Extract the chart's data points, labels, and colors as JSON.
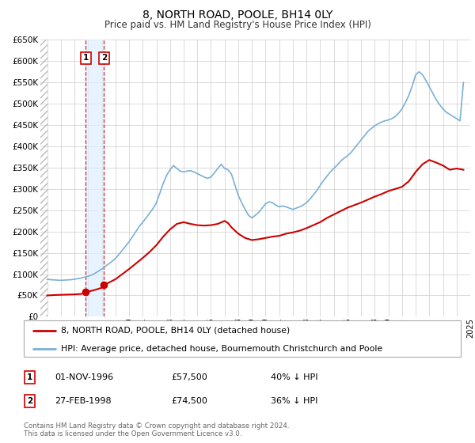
{
  "title": "8, NORTH ROAD, POOLE, BH14 0LY",
  "subtitle": "Price paid vs. HM Land Registry's House Price Index (HPI)",
  "legend_line1": "8, NORTH ROAD, POOLE, BH14 0LY (detached house)",
  "legend_line2": "HPI: Average price, detached house, Bournemouth Christchurch and Poole",
  "footer1": "Contains HM Land Registry data © Crown copyright and database right 2024.",
  "footer2": "This data is licensed under the Open Government Licence v3.0.",
  "sale1_date": "01-NOV-1996",
  "sale1_price": "£57,500",
  "sale1_pct": "40% ↓ HPI",
  "sale2_date": "27-FEB-1998",
  "sale2_price": "£74,500",
  "sale2_pct": "36% ↓ HPI",
  "red_color": "#cc0000",
  "blue_color": "#7ab0d4",
  "shade_color": "#ddeeff",
  "ylim_min": 0,
  "ylim_max": 650000,
  "yticks": [
    0,
    50000,
    100000,
    150000,
    200000,
    250000,
    300000,
    350000,
    400000,
    450000,
    500000,
    550000,
    600000,
    650000
  ],
  "ytick_labels": [
    "£0",
    "£50K",
    "£100K",
    "£150K",
    "£200K",
    "£250K",
    "£300K",
    "£350K",
    "£400K",
    "£450K",
    "£500K",
    "£550K",
    "£600K",
    "£650K"
  ],
  "hpi_years": [
    1994.0,
    1994.25,
    1994.5,
    1994.75,
    1995.0,
    1995.25,
    1995.5,
    1995.75,
    1996.0,
    1996.25,
    1996.5,
    1996.75,
    1997.0,
    1997.25,
    1997.5,
    1997.75,
    1998.0,
    1998.25,
    1998.5,
    1998.75,
    1999.0,
    1999.25,
    1999.5,
    1999.75,
    2000.0,
    2000.25,
    2000.5,
    2000.75,
    2001.0,
    2001.25,
    2001.5,
    2001.75,
    2002.0,
    2002.25,
    2002.5,
    2002.75,
    2003.0,
    2003.25,
    2003.5,
    2003.75,
    2004.0,
    2004.25,
    2004.5,
    2004.75,
    2005.0,
    2005.25,
    2005.5,
    2005.75,
    2006.0,
    2006.25,
    2006.5,
    2006.75,
    2007.0,
    2007.25,
    2007.5,
    2007.75,
    2008.0,
    2008.25,
    2008.5,
    2008.75,
    2009.0,
    2009.25,
    2009.5,
    2009.75,
    2010.0,
    2010.25,
    2010.5,
    2010.75,
    2011.0,
    2011.25,
    2011.5,
    2011.75,
    2012.0,
    2012.25,
    2012.5,
    2012.75,
    2013.0,
    2013.25,
    2013.5,
    2013.75,
    2014.0,
    2014.25,
    2014.5,
    2014.75,
    2015.0,
    2015.25,
    2015.5,
    2015.75,
    2016.0,
    2016.25,
    2016.5,
    2016.75,
    2017.0,
    2017.25,
    2017.5,
    2017.75,
    2018.0,
    2018.25,
    2018.5,
    2018.75,
    2019.0,
    2019.25,
    2019.5,
    2019.75,
    2020.0,
    2020.25,
    2020.5,
    2020.75,
    2021.0,
    2021.25,
    2021.5,
    2021.75,
    2022.0,
    2022.25,
    2022.5,
    2022.75,
    2023.0,
    2023.25,
    2023.5,
    2023.75,
    2024.0,
    2024.25,
    2024.5
  ],
  "hpi_values": [
    88000,
    87000,
    86500,
    86000,
    85500,
    86000,
    86500,
    87000,
    88000,
    89500,
    91000,
    93000,
    95000,
    98000,
    102000,
    107000,
    112000,
    118000,
    124000,
    130000,
    137000,
    146000,
    156000,
    166000,
    176000,
    188000,
    200000,
    212000,
    222000,
    232000,
    243000,
    254000,
    267000,
    290000,
    313000,
    332000,
    345000,
    355000,
    348000,
    342000,
    340000,
    342000,
    343000,
    340000,
    336000,
    332000,
    328000,
    325000,
    328000,
    338000,
    348000,
    358000,
    348000,
    345000,
    335000,
    310000,
    285000,
    268000,
    252000,
    238000,
    232000,
    238000,
    245000,
    255000,
    265000,
    270000,
    268000,
    262000,
    258000,
    260000,
    258000,
    255000,
    252000,
    255000,
    258000,
    262000,
    268000,
    276000,
    286000,
    296000,
    308000,
    320000,
    330000,
    340000,
    348000,
    356000,
    365000,
    372000,
    378000,
    385000,
    395000,
    405000,
    415000,
    425000,
    435000,
    442000,
    448000,
    453000,
    457000,
    460000,
    462000,
    465000,
    470000,
    478000,
    488000,
    503000,
    520000,
    542000,
    568000,
    575000,
    568000,
    555000,
    540000,
    525000,
    510000,
    498000,
    488000,
    480000,
    475000,
    470000,
    465000,
    460000,
    550000
  ],
  "red_years": [
    1994.0,
    1994.5,
    1995.0,
    1995.5,
    1996.0,
    1996.5,
    1996.833,
    1997.0,
    1997.5,
    1998.0,
    1998.167,
    1998.5,
    1999.0,
    1999.5,
    2000.0,
    2000.5,
    2001.0,
    2001.5,
    2002.0,
    2002.5,
    2003.0,
    2003.5,
    2004.0,
    2004.5,
    2005.0,
    2005.5,
    2006.0,
    2006.5,
    2007.0,
    2007.25,
    2007.5,
    2008.0,
    2008.5,
    2009.0,
    2009.5,
    2010.0,
    2010.5,
    2011.0,
    2011.5,
    2012.0,
    2012.5,
    2013.0,
    2013.5,
    2014.0,
    2014.5,
    2015.0,
    2015.5,
    2016.0,
    2016.5,
    2017.0,
    2017.5,
    2018.0,
    2018.5,
    2019.0,
    2019.5,
    2020.0,
    2020.5,
    2021.0,
    2021.5,
    2022.0,
    2022.5,
    2023.0,
    2023.5,
    2024.0,
    2024.5
  ],
  "red_values": [
    50000,
    51000,
    51500,
    52000,
    52500,
    53500,
    57500,
    59000,
    63000,
    68000,
    74500,
    80000,
    88000,
    100000,
    112000,
    125000,
    138000,
    152000,
    168000,
    188000,
    205000,
    218000,
    222000,
    218000,
    215000,
    214000,
    215000,
    218000,
    225000,
    220000,
    210000,
    195000,
    185000,
    180000,
    182000,
    185000,
    188000,
    190000,
    195000,
    198000,
    202000,
    208000,
    215000,
    222000,
    232000,
    240000,
    248000,
    256000,
    262000,
    268000,
    275000,
    282000,
    288000,
    295000,
    300000,
    305000,
    318000,
    340000,
    358000,
    368000,
    362000,
    355000,
    345000,
    348000,
    345000
  ],
  "sale1_x": 1996.833,
  "sale1_y": 57500,
  "sale2_x": 1998.167,
  "sale2_y": 74500,
  "xmin": 1994.0,
  "xmax": 2025.0,
  "hatch_xmax": 1994.0
}
